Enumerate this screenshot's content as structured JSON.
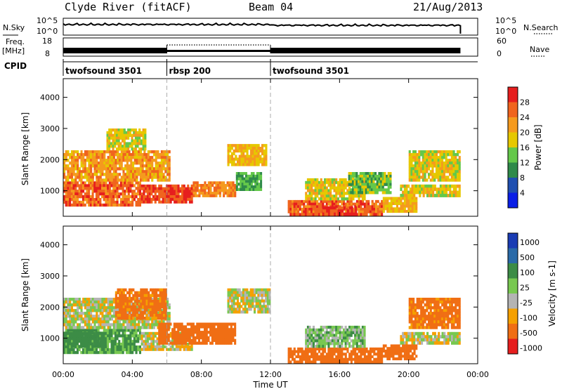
{
  "header": {
    "station": "Clyde River (fitACF)",
    "beam": "Beam 04",
    "date": "21/Aug/2013"
  },
  "sidebar_labels": {
    "nsky": "N.Sky",
    "freq": "Freq.",
    "freq_unit": "[MHz]",
    "cpid": "CPID",
    "nsearch": "N.Search",
    "nave": "Nave"
  },
  "strip_ticks": {
    "noise_left": [
      "10^5",
      "10^0"
    ],
    "noise_right": [
      "10^5",
      "10^0"
    ],
    "freq_left": [
      "18",
      "8"
    ],
    "nave_right": [
      "60",
      "0"
    ]
  },
  "cpid_segments": [
    {
      "label": "twofsound 3501",
      "start_h": 0,
      "end_h": 6
    },
    {
      "label": "rbsp 200",
      "start_h": 6,
      "end_h": 12
    },
    {
      "label": "twofsound 3501",
      "start_h": 12,
      "end_h": 24
    }
  ],
  "colors": {
    "power": [
      "#0a1ee6",
      "#1f4fb0",
      "#2f8a4a",
      "#64c84a",
      "#e6c800",
      "#f59a1e",
      "#f0641e",
      "#e61e1e"
    ],
    "velocity": [
      "#1a3cb4",
      "#2a6aa8",
      "#3c8c46",
      "#78c850",
      "#b4b4b4",
      "#f5a000",
      "#f06e14",
      "#e61e1e"
    ]
  },
  "chart_data": [
    {
      "type": "heatmap",
      "quantity": "power",
      "xlabel": "Time UT",
      "ylabel": "Slant Range [km]",
      "colorbar_label": "Power [dB]",
      "colorbar_ticks": [
        "4",
        "8",
        "12",
        "16",
        "20",
        "24",
        "28"
      ],
      "x_ticks": [
        "00:00",
        "04:00",
        "08:00",
        "12:00",
        "16:00",
        "20:00",
        "00:00"
      ],
      "y_ticks": [
        "1000",
        "2000",
        "3000",
        "4000"
      ],
      "xlim_hours": [
        0,
        24
      ],
      "ylim_km": [
        180,
        4600
      ],
      "regions": [
        {
          "t0": 0.0,
          "t1": 4.5,
          "r0": 500,
          "r1": 1300,
          "v": 26
        },
        {
          "t0": 4.5,
          "t1": 7.5,
          "r0": 600,
          "r1": 1200,
          "v": 28
        },
        {
          "t0": 0.0,
          "t1": 6.2,
          "r0": 1300,
          "r1": 2300,
          "v": 22
        },
        {
          "t0": 2.5,
          "t1": 4.8,
          "r0": 2300,
          "r1": 3000,
          "v": 18
        },
        {
          "t0": 7.5,
          "t1": 10.0,
          "r0": 800,
          "r1": 1300,
          "v": 24
        },
        {
          "t0": 9.5,
          "t1": 11.8,
          "r0": 1800,
          "r1": 2500,
          "v": 20
        },
        {
          "t0": 10.0,
          "t1": 11.5,
          "r0": 1000,
          "r1": 1600,
          "v": 12
        },
        {
          "t0": 13.0,
          "t1": 18.5,
          "r0": 200,
          "r1": 700,
          "v": 26
        },
        {
          "t0": 15.0,
          "t1": 17.0,
          "r0": 200,
          "r1": 500,
          "v": 29
        },
        {
          "t0": 14.0,
          "t1": 17.5,
          "r0": 700,
          "r1": 1400,
          "v": 18
        },
        {
          "t0": 16.5,
          "t1": 19.0,
          "r0": 900,
          "r1": 1600,
          "v": 14
        },
        {
          "t0": 19.5,
          "t1": 23.0,
          "r0": 800,
          "r1": 1200,
          "v": 18
        },
        {
          "t0": 20.0,
          "t1": 23.0,
          "r0": 1300,
          "r1": 2300,
          "v": 18
        },
        {
          "t0": 18.5,
          "t1": 20.5,
          "r0": 300,
          "r1": 800,
          "v": 20
        }
      ]
    },
    {
      "type": "heatmap",
      "quantity": "velocity",
      "xlabel": "Time UT",
      "ylabel": "Slant Range [km]",
      "colorbar_label": "Velocity [m s-1]",
      "colorbar_ticks": [
        "1000",
        "500",
        "100",
        "25",
        "-25",
        "-100",
        "-500",
        "-1000"
      ],
      "x_ticks": [
        "00:00",
        "04:00",
        "08:00",
        "12:00",
        "16:00",
        "20:00",
        "00:00"
      ],
      "y_ticks": [
        "1000",
        "2000",
        "3000",
        "4000"
      ],
      "xlim_hours": [
        0,
        24
      ],
      "ylim_km": [
        180,
        4600
      ],
      "regions": [
        {
          "t0": 0.0,
          "t1": 4.5,
          "r0": 500,
          "r1": 1300,
          "v": 120
        },
        {
          "t0": 0.0,
          "t1": 2.5,
          "r0": 700,
          "r1": 1200,
          "v": 400
        },
        {
          "t0": 0.0,
          "t1": 6.2,
          "r0": 1300,
          "r1": 2300,
          "v": 10
        },
        {
          "t0": 3.0,
          "t1": 6.0,
          "r0": 1600,
          "r1": 2600,
          "v": -150
        },
        {
          "t0": 4.5,
          "t1": 7.5,
          "r0": 600,
          "r1": 1200,
          "v": -20
        },
        {
          "t0": 5.5,
          "t1": 10.0,
          "r0": 800,
          "r1": 1500,
          "v": -200
        },
        {
          "t0": 9.5,
          "t1": 12.0,
          "r0": 1800,
          "r1": 2600,
          "v": 0
        },
        {
          "t0": 13.0,
          "t1": 18.5,
          "r0": 200,
          "r1": 700,
          "v": -200
        },
        {
          "t0": 14.0,
          "t1": 17.5,
          "r0": 700,
          "r1": 1400,
          "v": 60
        },
        {
          "t0": 19.5,
          "t1": 23.0,
          "r0": 800,
          "r1": 1200,
          "v": 0
        },
        {
          "t0": 20.0,
          "t1": 23.0,
          "r0": 1300,
          "r1": 2300,
          "v": -150
        },
        {
          "t0": 18.5,
          "t1": 20.5,
          "r0": 300,
          "r1": 800,
          "v": -300
        }
      ]
    }
  ]
}
